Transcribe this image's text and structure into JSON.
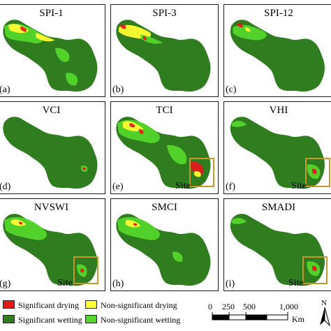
{
  "colors": {
    "significant_drying": "#e31a1c",
    "nonsignificant_drying": "#ffff33",
    "significant_wetting": "#2f7d1f",
    "nonsignificant_wetting": "#54d62b",
    "site_box": "#c8962a"
  },
  "panels": [
    {
      "id": "a",
      "title": "SPI-1",
      "label": "(a)",
      "site": false,
      "pattern": "wet_mixed"
    },
    {
      "id": "b",
      "title": "SPI-3",
      "label": "(b)",
      "site": false,
      "pattern": "mixed"
    },
    {
      "id": "c",
      "title": "SPI-12",
      "label": "(c)",
      "site": false,
      "pattern": "mostly_wet"
    },
    {
      "id": "d",
      "title": "VCI",
      "label": "(d)",
      "site": false,
      "pattern": "dark"
    },
    {
      "id": "e",
      "title": "TCI",
      "label": "(e)",
      "site": true,
      "site_label": "Site",
      "pattern": "drying"
    },
    {
      "id": "f",
      "title": "VHI",
      "label": "(f)",
      "site": true,
      "site_label": "Site",
      "pattern": "dark_site"
    },
    {
      "id": "g",
      "title": "NVSWI",
      "label": "(g)",
      "site": true,
      "site_label": "Site",
      "pattern": "mixed_site"
    },
    {
      "id": "h",
      "title": "SMCI",
      "label": "(h)",
      "site": false,
      "pattern": "mixed_light"
    },
    {
      "id": "i",
      "title": "SMADI",
      "label": "(i)",
      "site": true,
      "site_label": "Site",
      "pattern": "dark_site"
    }
  ],
  "legend": [
    {
      "label": "Significant drying",
      "color_key": "significant_drying"
    },
    {
      "label": "Non-significant drying",
      "color_key": "nonsignificant_drying"
    },
    {
      "label": "Significant wetting",
      "color_key": "significant_wetting"
    },
    {
      "label": "Non-significant wetting",
      "color_key": "nonsignificant_wetting"
    }
  ],
  "scale_bar": {
    "ticks": [
      "0",
      "250",
      "500",
      "1,000"
    ],
    "tick_values": [
      0,
      250,
      500,
      1000
    ],
    "unit": "Km"
  },
  "north_arrow": {
    "letter": "N"
  }
}
